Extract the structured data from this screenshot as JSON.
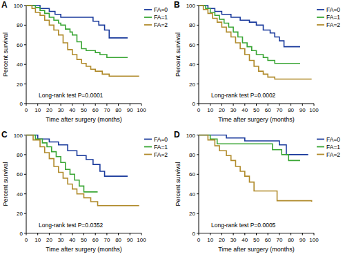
{
  "chart_data": [
    {
      "type": "line",
      "title": "A",
      "x_label": "Time after surgery (months)",
      "y_label": "Percent survival",
      "annotation": "Long-rank test P=0.0001",
      "line_style": "step",
      "legend": "outside-right",
      "xlim": [
        0,
        100
      ],
      "xticks": [
        0,
        10,
        20,
        30,
        40,
        50,
        60,
        70,
        80,
        90,
        100
      ],
      "ylim": [
        0,
        100
      ],
      "yticks": [
        0,
        20,
        40,
        60,
        80,
        100
      ],
      "series": [
        {
          "name": "FA=0",
          "color": "#1a3a9c",
          "x": [
            0,
            12,
            20,
            25,
            30,
            58,
            63,
            68,
            72,
            88
          ],
          "values": [
            100,
            97,
            94,
            91,
            88,
            84,
            80,
            75,
            67,
            67
          ]
        },
        {
          "name": "FA=1",
          "color": "#3aa635",
          "x": [
            0,
            8,
            12,
            16,
            20,
            24,
            28,
            30,
            34,
            38,
            40,
            44,
            48,
            52,
            60,
            64,
            70,
            88
          ],
          "values": [
            100,
            98,
            95,
            92,
            88,
            85,
            82,
            80,
            76,
            73,
            70,
            63,
            56,
            54,
            52,
            50,
            47,
            47
          ]
        },
        {
          "name": "FA=2",
          "color": "#b08a2a",
          "x": [
            0,
            5,
            8,
            12,
            16,
            20,
            24,
            28,
            32,
            36,
            40,
            44,
            48,
            52,
            56,
            60,
            66,
            72,
            98
          ],
          "values": [
            100,
            97,
            93,
            90,
            85,
            80,
            75,
            70,
            62,
            55,
            50,
            45,
            41,
            38,
            35,
            33,
            30,
            28,
            28
          ]
        }
      ]
    },
    {
      "type": "line",
      "title": "B",
      "x_label": "Time after surgery (months)",
      "y_label": "Percent survival",
      "annotation": "Long-rank test P=0.0002",
      "line_style": "step",
      "legend": "outside-right",
      "xlim": [
        0,
        100
      ],
      "xticks": [
        0,
        10,
        20,
        30,
        40,
        50,
        60,
        70,
        80,
        90,
        100
      ],
      "ylim": [
        0,
        100
      ],
      "yticks": [
        0,
        20,
        40,
        60,
        80,
        100
      ],
      "series": [
        {
          "name": "FA=0",
          "color": "#1a3a9c",
          "x": [
            0,
            8,
            14,
            20,
            28,
            36,
            44,
            50,
            56,
            62,
            66,
            70,
            74,
            88
          ],
          "values": [
            100,
            97,
            94,
            91,
            88,
            85,
            83,
            80,
            75,
            72,
            68,
            64,
            58,
            58
          ]
        },
        {
          "name": "FA=1",
          "color": "#3aa635",
          "x": [
            0,
            6,
            10,
            14,
            18,
            22,
            26,
            30,
            34,
            38,
            42,
            46,
            50,
            56,
            60,
            66,
            88
          ],
          "values": [
            100,
            97,
            93,
            90,
            86,
            82,
            78,
            73,
            68,
            62,
            58,
            54,
            50,
            47,
            44,
            41,
            41
          ]
        },
        {
          "name": "FA=2",
          "color": "#b08a2a",
          "x": [
            0,
            4,
            8,
            12,
            16,
            20,
            24,
            28,
            32,
            36,
            40,
            44,
            48,
            52,
            56,
            60,
            66,
            98
          ],
          "values": [
            100,
            96,
            92,
            87,
            83,
            78,
            73,
            68,
            62,
            56,
            50,
            44,
            38,
            33,
            30,
            27,
            25,
            25
          ]
        }
      ]
    },
    {
      "type": "line",
      "title": "C",
      "x_label": "Time after surgery (months)",
      "y_label": "Percent survival",
      "annotation": "Long-rank test P=0.0352",
      "line_style": "step",
      "legend": "outside-right",
      "xlim": [
        0,
        100
      ],
      "xticks": [
        0,
        10,
        20,
        30,
        40,
        50,
        60,
        70,
        80,
        90,
        100
      ],
      "ylim": [
        0,
        100
      ],
      "yticks": [
        0,
        20,
        40,
        60,
        80,
        100
      ],
      "series": [
        {
          "name": "FA=0",
          "color": "#1a3a9c",
          "x": [
            0,
            10,
            20,
            28,
            36,
            44,
            52,
            58,
            64,
            68,
            88
          ],
          "values": [
            100,
            96,
            93,
            90,
            84,
            79,
            75,
            70,
            63,
            58,
            58
          ]
        },
        {
          "name": "FA=1",
          "color": "#3aa635",
          "x": [
            0,
            8,
            14,
            18,
            22,
            26,
            30,
            34,
            38,
            42,
            46,
            50,
            62
          ],
          "values": [
            100,
            96,
            92,
            88,
            83,
            78,
            72,
            65,
            60,
            54,
            48,
            42,
            42
          ]
        },
        {
          "name": "FA=2",
          "color": "#b08a2a",
          "x": [
            0,
            6,
            12,
            16,
            20,
            24,
            28,
            32,
            36,
            40,
            44,
            50,
            56,
            62,
            98
          ],
          "values": [
            100,
            95,
            88,
            82,
            76,
            68,
            62,
            56,
            50,
            45,
            40,
            36,
            32,
            28,
            28
          ]
        }
      ]
    },
    {
      "type": "line",
      "title": "D",
      "x_label": "Time after surgery (months)",
      "y_label": "Percent survival",
      "annotation": "Long-rank test P=0.0005",
      "line_style": "step",
      "legend": "outside-right",
      "xlim": [
        0,
        100
      ],
      "xticks": [
        0,
        10,
        20,
        30,
        40,
        50,
        60,
        70,
        80,
        90,
        100
      ],
      "ylim": [
        0,
        100
      ],
      "yticks": [
        0,
        20,
        40,
        60,
        80,
        100
      ],
      "series": [
        {
          "name": "FA=0",
          "color": "#1a3a9c",
          "x": [
            0,
            24,
            40,
            70,
            76,
            95
          ],
          "values": [
            100,
            97,
            94,
            90,
            80,
            80
          ]
        },
        {
          "name": "FA=1",
          "color": "#3aa635",
          "x": [
            0,
            10,
            16,
            64,
            72,
            78,
            88
          ],
          "values": [
            100,
            96,
            91,
            85,
            80,
            74,
            74
          ]
        },
        {
          "name": "FA=2",
          "color": "#b08a2a",
          "x": [
            0,
            8,
            14,
            18,
            24,
            28,
            32,
            36,
            40,
            44,
            48,
            66,
            68,
            98
          ],
          "values": [
            100,
            95,
            89,
            84,
            79,
            74,
            68,
            63,
            58,
            52,
            43,
            43,
            33,
            32
          ]
        }
      ]
    }
  ]
}
